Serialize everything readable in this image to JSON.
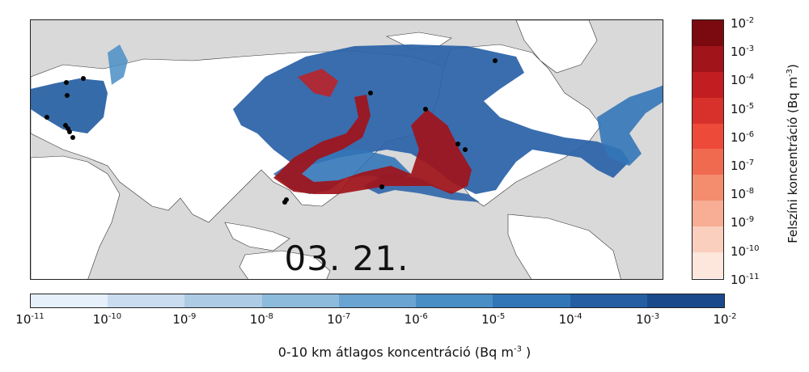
{
  "map": {
    "date_label": "03. 21.",
    "ocean_color": "#d9d9d9",
    "land_color": "#ffffff"
  },
  "surface_colorbar": {
    "label": "Felszíni koncentráció (Bq m⁻³)",
    "label_base": "Felszíni koncentráció (Bq m",
    "label_exp": "-3",
    "label_tail": ")",
    "ticks": [
      {
        "base": "10",
        "exp": "-2"
      },
      {
        "base": "10",
        "exp": "-3"
      },
      {
        "base": "10",
        "exp": "-4"
      },
      {
        "base": "10",
        "exp": "-5"
      },
      {
        "base": "10",
        "exp": "-6"
      },
      {
        "base": "10",
        "exp": "-7"
      },
      {
        "base": "10",
        "exp": "-8"
      },
      {
        "base": "10",
        "exp": "-9"
      },
      {
        "base": "10",
        "exp": "-10"
      },
      {
        "base": "10",
        "exp": "-11"
      }
    ],
    "colors": [
      "#7a0a10",
      "#a0141a",
      "#c21e22",
      "#d8312c",
      "#ee4a3a",
      "#f06a50",
      "#f48c6e",
      "#f7ae94",
      "#fbcfbd",
      "#fde6dc"
    ]
  },
  "column_colorbar": {
    "label_base": "0-10 km átlagos koncentráció (Bq m",
    "label_exp": "-3",
    "label_tail": " )",
    "ticks": [
      {
        "base": "10",
        "exp": "-11"
      },
      {
        "base": "10",
        "exp": "-10"
      },
      {
        "base": "10",
        "exp": "-9"
      },
      {
        "base": "10",
        "exp": "-8"
      },
      {
        "base": "10",
        "exp": "-7"
      },
      {
        "base": "10",
        "exp": "-6"
      },
      {
        "base": "10",
        "exp": "-5"
      },
      {
        "base": "10",
        "exp": "-4"
      },
      {
        "base": "10",
        "exp": "-3"
      },
      {
        "base": "10",
        "exp": "-2"
      }
    ],
    "colors": [
      "#e6f0fa",
      "#cadcef",
      "#aecbe5",
      "#8dbbdc",
      "#6aa4d2",
      "#4a8ec6",
      "#3376b8",
      "#255ea3",
      "#1a4a8c"
    ]
  }
}
